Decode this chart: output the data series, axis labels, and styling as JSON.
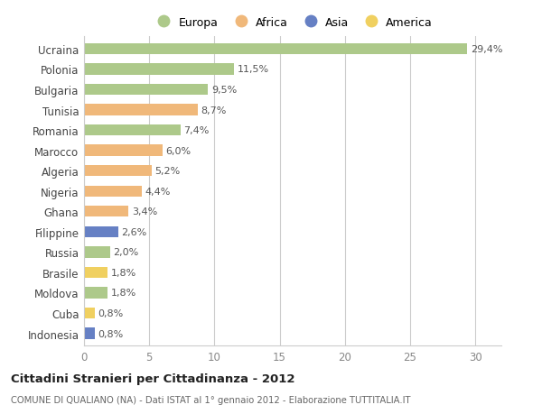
{
  "countries": [
    "Ucraina",
    "Polonia",
    "Bulgaria",
    "Tunisia",
    "Romania",
    "Marocco",
    "Algeria",
    "Nigeria",
    "Ghana",
    "Filippine",
    "Russia",
    "Brasile",
    "Moldova",
    "Cuba",
    "Indonesia"
  ],
  "values": [
    29.4,
    11.5,
    9.5,
    8.7,
    7.4,
    6.0,
    5.2,
    4.4,
    3.4,
    2.6,
    2.0,
    1.8,
    1.8,
    0.8,
    0.8
  ],
  "labels": [
    "29,4%",
    "11,5%",
    "9,5%",
    "8,7%",
    "7,4%",
    "6,0%",
    "5,2%",
    "4,4%",
    "3,4%",
    "2,6%",
    "2,0%",
    "1,8%",
    "1,8%",
    "0,8%",
    "0,8%"
  ],
  "continents": [
    "Europa",
    "Europa",
    "Europa",
    "Africa",
    "Europa",
    "Africa",
    "Africa",
    "Africa",
    "Africa",
    "Asia",
    "Europa",
    "America",
    "Europa",
    "America",
    "Asia"
  ],
  "colors": {
    "Europa": "#adc98a",
    "Africa": "#f0b87a",
    "Asia": "#6680c4",
    "America": "#f0d060"
  },
  "legend_order": [
    "Europa",
    "Africa",
    "Asia",
    "America"
  ],
  "title": "Cittadini Stranieri per Cittadinanza - 2012",
  "subtitle": "COMUNE DI QUALIANO (NA) - Dati ISTAT al 1° gennaio 2012 - Elaborazione TUTTITALIA.IT",
  "xlim": [
    0,
    32
  ],
  "xticks": [
    0,
    5,
    10,
    15,
    20,
    25,
    30
  ],
  "background_color": "#ffffff",
  "plot_bg": "#ffffff",
  "grid_color": "#cccccc"
}
